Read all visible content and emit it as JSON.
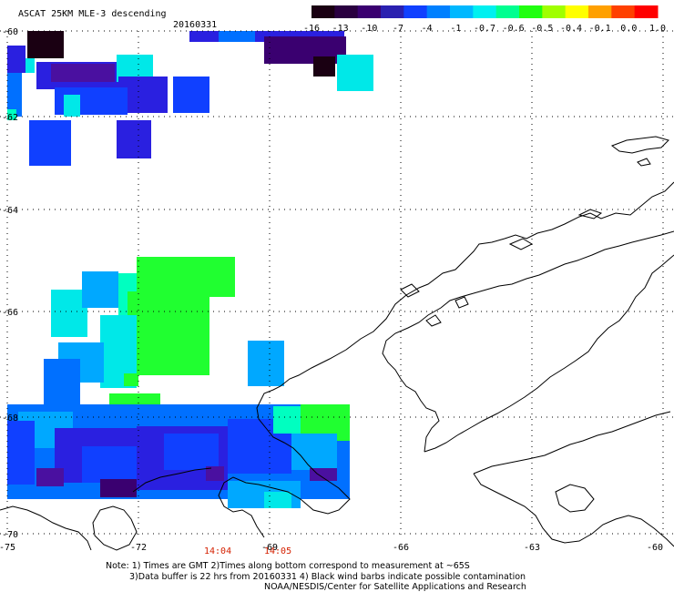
{
  "title": "ASCAT 25KM MLE-3 descending",
  "date": "20160331",
  "colorbar": {
    "labels": [
      "-16",
      "-13",
      "-10",
      "-7",
      "-4",
      "-1",
      "-0.7",
      "-0.6",
      "-0.5",
      "-0.4",
      "-0.1",
      "0.0",
      "1.0"
    ],
    "colors": [
      "#1a0012",
      "#2a0040",
      "#3a0070",
      "#2a20b0",
      "#1040ff",
      "#0080ff",
      "#00b8ff",
      "#00f0f0",
      "#00ff90",
      "#20ff10",
      "#a0ff00",
      "#ffff00",
      "#ffa000",
      "#ff4000",
      "#ff0000"
    ]
  },
  "axes": {
    "lat_labels": [
      "-60",
      "-62",
      "-64",
      "-66",
      "-68",
      "-70"
    ],
    "lon_labels": [
      "-75",
      "-72",
      "-69",
      "-66",
      "-63",
      "-60"
    ]
  },
  "time_labels": [
    "14:04",
    "14:05"
  ],
  "notes": [
    "Note: 1) Times are GMT 2)Times along bottom correspond to measurement at ~65S",
    "3)Data buffer is 22 hrs from 20160331 4) Black wind barbs indicate possible contamination",
    "NOAA/NESDIS/Center for Satellite Applications and Research"
  ],
  "colors": {
    "c_dark": "#1a0012",
    "c_indigo": "#3a0070",
    "c_violet": "#4a10a0",
    "c_blue": "#2a20e0",
    "c_blue2": "#1040ff",
    "c_mid": "#0070ff",
    "c_sky": "#00a8ff",
    "c_cyan": "#00e8e8",
    "c_aqua": "#00ffc0",
    "c_green": "#20ff30",
    "c_lime": "#40ff00"
  }
}
